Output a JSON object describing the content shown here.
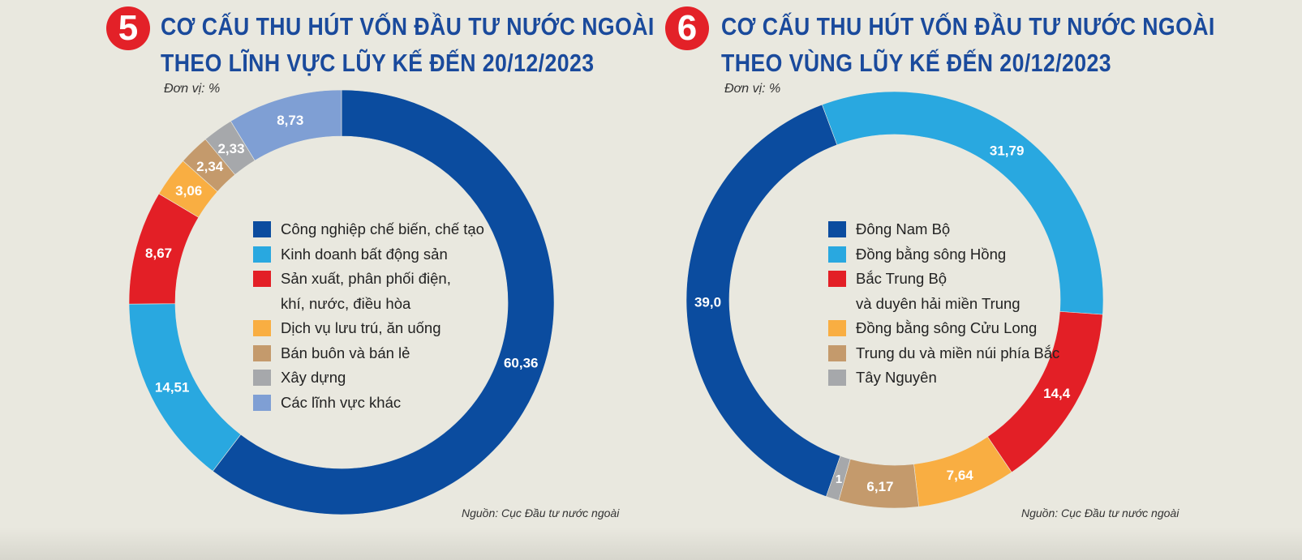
{
  "chart_data": [
    {
      "type": "pie",
      "number": "5",
      "title_lines": [
        "CƠ CẤU THU HÚT VỐN ĐẦU TƯ NƯỚC NGOÀI",
        "THEO LĨNH VỰC LŨY KẾ ĐẾN 20/12/2023"
      ],
      "unit": "Đơn vị: %",
      "source": "Nguồn: Cục Đầu tư nước ngoài",
      "categories": [
        "Công nghiệp chế biến, chế tạo",
        "Kinh doanh bất động sản",
        "Sản xuất, phân phối điện,\nkhí, nước, điều hòa",
        "Dịch vụ lưu trú, ăn uống",
        "Bán buôn và bán lẻ",
        "Xây dựng",
        "Các lĩnh vực khác"
      ],
      "values": [
        60.36,
        14.51,
        8.67,
        3.06,
        2.34,
        2.33,
        8.73
      ],
      "value_labels": [
        "60,36",
        "14,51",
        "8,67",
        "3,06",
        "2,34",
        "2,33",
        "8,73"
      ],
      "colors": [
        "#0b4c9f",
        "#29a8e0",
        "#e31f26",
        "#f9ae42",
        "#c49a6c",
        "#a6a8ab",
        "#7f9fd4"
      ],
      "legend_position": "center"
    },
    {
      "type": "pie",
      "number": "6",
      "title_lines": [
        "CƠ CẤU THU HÚT VỐN ĐẦU TƯ NƯỚC NGOÀI",
        "THEO VÙNG LŨY KẾ ĐẾN 20/12/2023"
      ],
      "unit": "Đơn vị: %",
      "source": "Nguồn: Cục Đầu tư nước ngoài",
      "categories": [
        "Đông Nam Bộ",
        "Đồng bằng sông Hồng",
        "Bắc Trung Bộ\nvà duyên hải miền Trung",
        "Đồng bằng sông Cửu Long",
        "Trung du và miền núi phía Bắc",
        "Tây Nguyên"
      ],
      "values": [
        39.0,
        31.79,
        14.4,
        7.64,
        6.17,
        1
      ],
      "value_labels": [
        "39,0",
        "31,79",
        "14,4",
        "7,64",
        "6,17",
        "1"
      ],
      "colors": [
        "#0b4c9f",
        "#29a8e0",
        "#e31f26",
        "#f9ae42",
        "#c49a6c",
        "#a6a8ab"
      ],
      "legend_position": "center"
    }
  ]
}
